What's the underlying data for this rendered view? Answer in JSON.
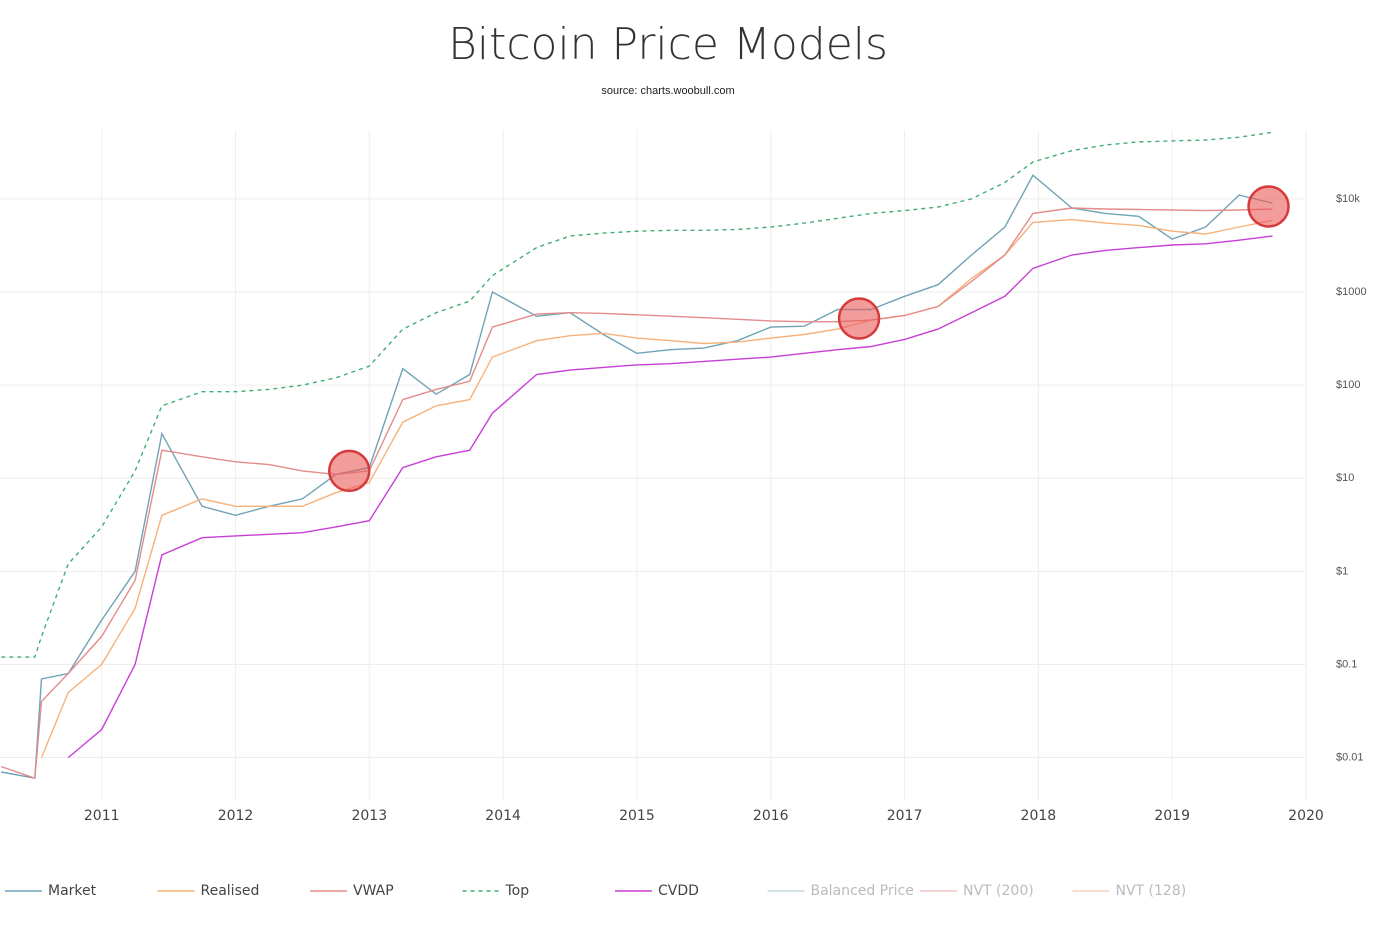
{
  "chart_data": {
    "type": "line",
    "title": "Bitcoin Price Models",
    "subtitle": "source: charts.woobull.com",
    "log_y": true,
    "grid": true,
    "legend": "bottom",
    "x": [
      2010.25,
      2010.5,
      2010.55,
      2010.75,
      2011.0,
      2011.25,
      2011.45,
      2011.75,
      2012.0,
      2012.25,
      2012.5,
      2012.75,
      2013.0,
      2013.25,
      2013.5,
      2013.75,
      2013.92,
      2014.25,
      2014.5,
      2014.75,
      2015.0,
      2015.25,
      2015.5,
      2015.75,
      2016.0,
      2016.25,
      2016.5,
      2016.75,
      2017.0,
      2017.25,
      2017.5,
      2017.75,
      2017.96,
      2018.25,
      2018.5,
      2018.75,
      2019.0,
      2019.25,
      2019.5,
      2019.75
    ],
    "xlim": [
      2010.24,
      2020.0
    ],
    "xticks": [
      2011,
      2012,
      2013,
      2014,
      2015,
      2016,
      2017,
      2018,
      2019,
      2020
    ],
    "ylim": [
      0.0035,
      55000
    ],
    "yticks": [
      {
        "value": 0.01,
        "label": "$0.01"
      },
      {
        "value": 0.1,
        "label": "$0.1"
      },
      {
        "value": 1,
        "label": "$1"
      },
      {
        "value": 10,
        "label": "$10"
      },
      {
        "value": 100,
        "label": "$100"
      },
      {
        "value": 1000,
        "label": "$1000"
      },
      {
        "value": 10000,
        "label": "$10k"
      }
    ],
    "series": [
      {
        "name": "Market",
        "color": "#6fa3b5",
        "dash": false,
        "visible": true,
        "values": [
          0.007,
          0.006,
          0.07,
          0.08,
          0.3,
          1,
          30,
          5,
          4,
          5,
          6,
          11,
          13,
          150,
          80,
          130,
          1000,
          550,
          600,
          350,
          220,
          240,
          250,
          300,
          420,
          430,
          650,
          650,
          900,
          1200,
          2500,
          5000,
          18000,
          8000,
          7000,
          6500,
          3700,
          5000,
          11000,
          9000
        ]
      },
      {
        "name": "Realised",
        "color": "#f6b27a",
        "dash": false,
        "visible": true,
        "values": [
          null,
          null,
          0.01,
          0.05,
          0.1,
          0.4,
          4,
          6,
          5,
          5,
          5,
          7,
          9,
          40,
          60,
          70,
          200,
          300,
          340,
          360,
          320,
          300,
          280,
          290,
          320,
          350,
          400,
          500,
          560,
          700,
          1400,
          2500,
          5600,
          6000,
          5500,
          5200,
          4500,
          4200,
          5000,
          5900
        ]
      },
      {
        "name": "VWAP",
        "color": "#e38c8a",
        "dash": false,
        "visible": true,
        "values": [
          0.008,
          0.006,
          0.04,
          0.08,
          0.2,
          0.8,
          20,
          17,
          15,
          14,
          12,
          11,
          12,
          70,
          90,
          110,
          420,
          580,
          600,
          590,
          570,
          550,
          530,
          510,
          490,
          480,
          480,
          500,
          560,
          700,
          1300,
          2500,
          7000,
          8000,
          7800,
          7700,
          7600,
          7500,
          7600,
          7800
        ]
      },
      {
        "name": "Top",
        "color": "#3fae73",
        "dash": true,
        "visible": true,
        "values": [
          0.12,
          0.12,
          0.2,
          1.2,
          3,
          12,
          60,
          85,
          85,
          90,
          100,
          120,
          160,
          400,
          600,
          800,
          1500,
          3000,
          4000,
          4300,
          4500,
          4600,
          4600,
          4700,
          5000,
          5500,
          6200,
          7000,
          7500,
          8200,
          10000,
          15000,
          25000,
          33000,
          38000,
          41000,
          42000,
          43000,
          46000,
          52000
        ]
      },
      {
        "name": "CVDD",
        "color": "#c83fd6",
        "dash": false,
        "visible": true,
        "values": [
          null,
          null,
          null,
          0.01,
          0.02,
          0.1,
          1.5,
          2.3,
          2.4,
          2.5,
          2.6,
          3,
          3.5,
          13,
          17,
          20,
          50,
          130,
          145,
          155,
          165,
          170,
          180,
          190,
          200,
          220,
          240,
          260,
          310,
          400,
          600,
          900,
          1800,
          2500,
          2800,
          3000,
          3200,
          3300,
          3600,
          4000
        ]
      },
      {
        "name": "Balanced Price",
        "color": "#c6dadd",
        "dash": false,
        "visible": false
      },
      {
        "name": "NVT (200)",
        "color": "#f1c3c3",
        "dash": false,
        "visible": false
      },
      {
        "name": "NVT (128)",
        "color": "#f3d2c2",
        "dash": false,
        "visible": false
      }
    ],
    "highlights": [
      {
        "x": 2012.85,
        "y": 12
      },
      {
        "x": 2016.66,
        "y": 520
      },
      {
        "x": 2019.72,
        "y": 8300
      }
    ]
  }
}
